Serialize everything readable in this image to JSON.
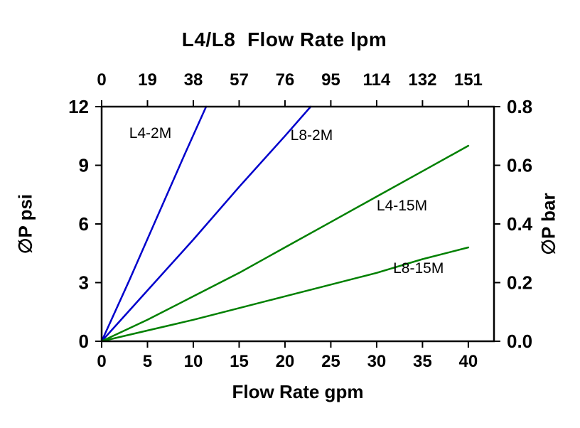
{
  "chart_data": {
    "type": "line",
    "title": "L4/L8  Flow Rate lpm",
    "xlabel": "Flow Rate gpm",
    "ylabel_left": "∅P psi",
    "ylabel_right": "∅P bar",
    "grid": false,
    "legend": "inline-labels",
    "x_axis": {
      "min": 0,
      "max": 42.8,
      "tick_positions": [
        0,
        5,
        10,
        15,
        20,
        25,
        30,
        35,
        40
      ],
      "bottom_labels": [
        "0",
        "5",
        "10",
        "15",
        "20",
        "25",
        "30",
        "35",
        "40"
      ],
      "top_labels": [
        "0",
        "19",
        "38",
        "57",
        "76",
        "95",
        "114",
        "132",
        "151"
      ]
    },
    "y_left_axis": {
      "min": 0,
      "max": 12,
      "tick_positions": [
        0,
        3,
        6,
        9,
        12
      ],
      "labels": [
        "0",
        "3",
        "6",
        "9",
        "12"
      ]
    },
    "y_right_axis": {
      "min": 0,
      "max": 0.8,
      "tick_positions": [
        0,
        0.2,
        0.4,
        0.6,
        0.8
      ],
      "labels": [
        "0.0",
        "0.2",
        "0.4",
        "0.6",
        "0.8"
      ]
    },
    "colors": {
      "blue": "#0000cc",
      "green": "#008000",
      "axis": "#000000",
      "background": "#ffffff"
    },
    "series": [
      {
        "name": "L4-2M",
        "color": "#0000cc",
        "points": [
          [
            0,
            0
          ],
          [
            3,
            3.1
          ],
          [
            6,
            6.3
          ],
          [
            9,
            9.5
          ],
          [
            11.4,
            12
          ]
        ],
        "label": "L4-2M",
        "label_pos": [
          3,
          10.4
        ]
      },
      {
        "name": "L8-2M",
        "color": "#0000cc",
        "points": [
          [
            0,
            0
          ],
          [
            5,
            2.6
          ],
          [
            10,
            5.2
          ],
          [
            15,
            7.9
          ],
          [
            20,
            10.5
          ],
          [
            22.8,
            12
          ]
        ],
        "label": "L8-2M",
        "label_pos": [
          20.6,
          10.3
        ]
      },
      {
        "name": "L4-15M",
        "color": "#008000",
        "points": [
          [
            0,
            0
          ],
          [
            5,
            1.1
          ],
          [
            10,
            2.3
          ],
          [
            15,
            3.5
          ],
          [
            20,
            4.8
          ],
          [
            25,
            6.1
          ],
          [
            30,
            7.4
          ],
          [
            35,
            8.7
          ],
          [
            40,
            10
          ]
        ],
        "label": "L4-15M",
        "label_pos": [
          30,
          6.7
        ]
      },
      {
        "name": "L8-15M",
        "color": "#008000",
        "points": [
          [
            0,
            0
          ],
          [
            5,
            0.55
          ],
          [
            10,
            1.1
          ],
          [
            15,
            1.7
          ],
          [
            20,
            2.3
          ],
          [
            25,
            2.9
          ],
          [
            30,
            3.5
          ],
          [
            35,
            4.2
          ],
          [
            40,
            4.8
          ]
        ],
        "label": "L8-15M",
        "label_pos": [
          31.8,
          3.5
        ]
      }
    ]
  }
}
